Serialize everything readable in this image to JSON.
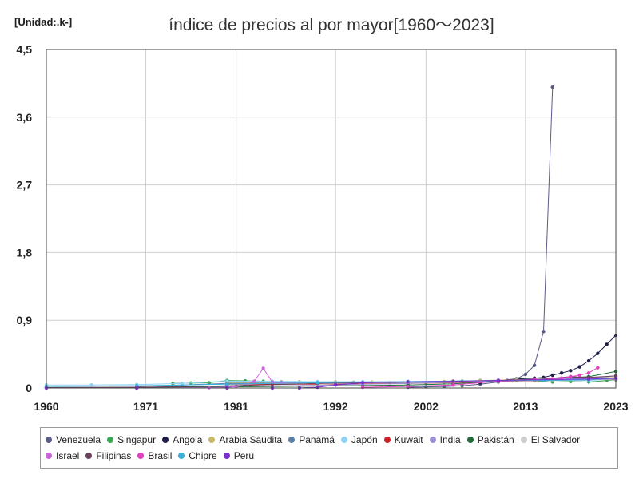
{
  "unit_label": "[Unidad:.k-]",
  "chart_data": {
    "type": "line",
    "title": "índice de precios al por mayor[1960～2023]",
    "xlabel": "",
    "ylabel": "",
    "xlim": [
      1960,
      2023
    ],
    "ylim": [
      0,
      4.5
    ],
    "x_ticks": [
      "1960",
      "1971",
      "1981",
      "1992",
      "2002",
      "2013",
      "2023"
    ],
    "y_ticks": [
      "0",
      "0,9",
      "1,8",
      "2,7",
      "3,6",
      "4,5"
    ],
    "grid": true,
    "legend_position": "bottom",
    "series": [
      {
        "name": "Venezuela",
        "color": "#5c5c8a",
        "x": [
          2000,
          2002,
          2004,
          2006,
          2008,
          2010,
          2011,
          2012,
          2013,
          2014,
          2015,
          2016
        ],
        "y": [
          0.01,
          0.015,
          0.02,
          0.03,
          0.05,
          0.08,
          0.1,
          0.12,
          0.18,
          0.3,
          0.75,
          4.0
        ]
      },
      {
        "name": "Singapur",
        "color": "#3aa655",
        "x": [
          1974,
          1976,
          1978,
          1980,
          1982,
          1984,
          1986,
          1988,
          1990,
          1992,
          1994,
          1996,
          1998,
          2000,
          2002,
          2004,
          2006,
          2008,
          2010,
          2012,
          2014,
          2016,
          2018,
          2020,
          2022,
          2023
        ],
        "y": [
          0.06,
          0.065,
          0.07,
          0.1,
          0.095,
          0.09,
          0.08,
          0.08,
          0.08,
          0.08,
          0.075,
          0.075,
          0.07,
          0.075,
          0.07,
          0.08,
          0.09,
          0.1,
          0.1,
          0.1,
          0.095,
          0.08,
          0.085,
          0.08,
          0.1,
          0.11
        ]
      },
      {
        "name": "Angola",
        "color": "#1e1e4a",
        "x": [
          2008,
          2010,
          2012,
          2014,
          2015,
          2016,
          2017,
          2018,
          2019,
          2020,
          2021,
          2022,
          2023
        ],
        "y": [
          0.07,
          0.1,
          0.12,
          0.13,
          0.14,
          0.17,
          0.2,
          0.23,
          0.28,
          0.36,
          0.46,
          0.58,
          0.7
        ]
      },
      {
        "name": "Arabia Saudita",
        "color": "#c7b86a",
        "x": [
          1980,
          1984,
          1988,
          1992,
          1996,
          2000,
          2004,
          2008,
          2012,
          2016,
          2020,
          2023
        ],
        "y": [
          0.07,
          0.075,
          0.075,
          0.08,
          0.08,
          0.08,
          0.085,
          0.1,
          0.11,
          0.11,
          0.13,
          0.14
        ]
      },
      {
        "name": "Panamá",
        "color": "#5a7fa8",
        "x": [
          1970,
          1975,
          1980,
          1985,
          1990,
          1995,
          2000,
          2005,
          2010,
          2015,
          2020,
          2023
        ],
        "y": [
          0.02,
          0.04,
          0.06,
          0.065,
          0.07,
          0.07,
          0.07,
          0.08,
          0.1,
          0.11,
          0.11,
          0.12
        ]
      },
      {
        "name": "Japón",
        "color": "#8fd3f4",
        "x": [
          1960,
          1965,
          1970,
          1975,
          1980,
          1985,
          1990,
          1995,
          2000,
          2005,
          2010,
          2015,
          2020,
          2023
        ],
        "y": [
          0.04,
          0.04,
          0.045,
          0.06,
          0.09,
          0.09,
          0.085,
          0.085,
          0.085,
          0.085,
          0.09,
          0.1,
          0.1,
          0.12
        ]
      },
      {
        "name": "Kuwait",
        "color": "#d0202a",
        "x": [
          1980,
          1985,
          1990,
          1995,
          2000,
          2005,
          2010,
          2015,
          2020,
          2023
        ],
        "y": [
          0.05,
          0.05,
          0.05,
          0.055,
          0.06,
          0.07,
          0.09,
          0.1,
          0.11,
          0.12
        ]
      },
      {
        "name": "India",
        "color": "#9b91d6",
        "x": [
          1960,
          1970,
          1980,
          1990,
          1995,
          2000,
          2005,
          2010,
          2015,
          2020,
          2023
        ],
        "y": [
          0.005,
          0.01,
          0.02,
          0.035,
          0.05,
          0.06,
          0.075,
          0.09,
          0.11,
          0.13,
          0.16
        ]
      },
      {
        "name": "Pakistán",
        "color": "#1f6b3a",
        "x": [
          1960,
          1970,
          1980,
          1990,
          2000,
          2005,
          2010,
          2015,
          2020,
          2023
        ],
        "y": [
          0.005,
          0.008,
          0.015,
          0.025,
          0.04,
          0.055,
          0.09,
          0.12,
          0.15,
          0.22
        ]
      },
      {
        "name": "El Salvador",
        "color": "#cccccc",
        "x": [
          1990,
          1995,
          2000,
          2005,
          2010,
          2015,
          2020,
          2023
        ],
        "y": [
          0.05,
          0.07,
          0.075,
          0.085,
          0.1,
          0.1,
          0.11,
          0.12
        ]
      },
      {
        "name": "Israel",
        "color": "#cc66dd",
        "x": [
          1960,
          1970,
          1978,
          1980,
          1981,
          1982,
          1983,
          1984,
          1985,
          1986,
          1990,
          2000,
          2010,
          2020,
          2023
        ],
        "y": [
          0.0,
          0.0,
          0.005,
          0.01,
          0.02,
          0.04,
          0.09,
          0.26,
          0.08,
          0.07,
          0.07,
          0.085,
          0.1,
          0.11,
          0.12
        ]
      },
      {
        "name": "Filipinas",
        "color": "#6b3f5e",
        "x": [
          1960,
          1970,
          1980,
          1990,
          2000,
          2005,
          2010,
          2015,
          2018,
          2020,
          2023
        ],
        "y": [
          0.005,
          0.01,
          0.03,
          0.06,
          0.08,
          0.09,
          0.1,
          0.12,
          0.15,
          0.14,
          0.16
        ]
      },
      {
        "name": "Brasil",
        "color": "#e040c0",
        "x": [
          1995,
          2000,
          2005,
          2010,
          2014,
          2016,
          2017,
          2018,
          2019,
          2020,
          2021
        ],
        "y": [
          0.01,
          0.02,
          0.04,
          0.09,
          0.11,
          0.12,
          0.13,
          0.15,
          0.17,
          0.2,
          0.27
        ]
      },
      {
        "name": "Chipre",
        "color": "#3ab0d8",
        "x": [
          1960,
          1970,
          1980,
          1990,
          2000,
          2010,
          2015,
          2020,
          2023
        ],
        "y": [
          0.02,
          0.03,
          0.05,
          0.07,
          0.085,
          0.1,
          0.1,
          0.11,
          0.13
        ]
      },
      {
        "name": "Perú",
        "color": "#7a2fd0",
        "x": [
          1960,
          1970,
          1980,
          1985,
          1988,
          1990,
          1992,
          1995,
          2000,
          2010,
          2020,
          2023
        ],
        "y": [
          0.0,
          0.0,
          0.0,
          0.0,
          0.001,
          0.01,
          0.04,
          0.07,
          0.08,
          0.1,
          0.12,
          0.13
        ]
      }
    ]
  }
}
